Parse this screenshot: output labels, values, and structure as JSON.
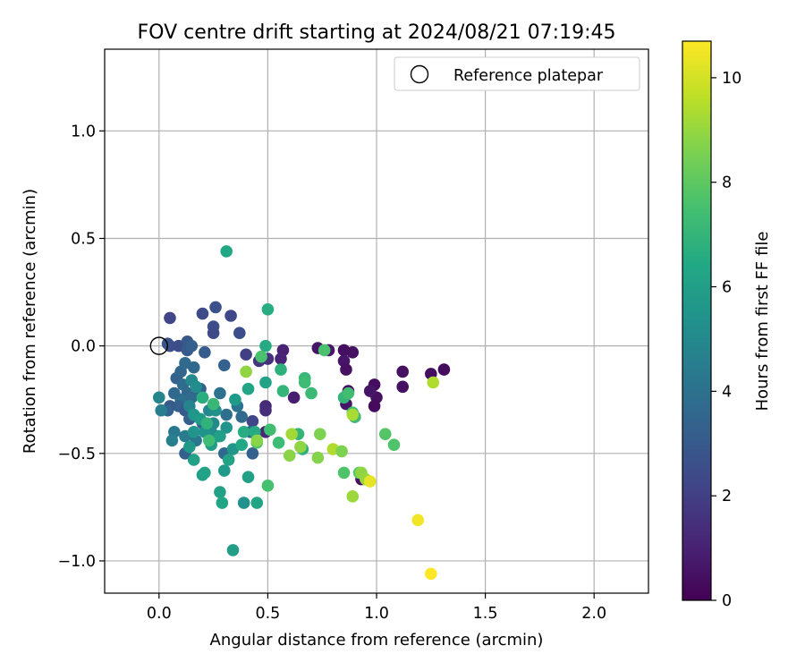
{
  "chart_data": {
    "type": "scatter",
    "title": "FOV centre drift starting at 2024/08/21 07:19:45",
    "xlabel": "Angular distance from reference (arcmin)",
    "ylabel": "Rotation from reference (arcmin)",
    "xlim": [
      -0.25,
      2.25
    ],
    "ylim": [
      -1.15,
      1.38
    ],
    "xticks": [
      0.0,
      0.5,
      1.0,
      1.5,
      2.0
    ],
    "xtick_labels": [
      "0.0",
      "0.5",
      "1.0",
      "1.5",
      "2.0"
    ],
    "yticks": [
      -1.0,
      -0.5,
      0.0,
      0.5,
      1.0
    ],
    "ytick_labels": [
      "−1.0",
      "−0.5",
      "0.0",
      "0.5",
      "1.0"
    ],
    "grid": true,
    "legend": {
      "position": "top-right",
      "entries": [
        "Reference platepar"
      ]
    },
    "reference_point": [
      0.0,
      0.0
    ],
    "colorbar": {
      "label": "Hours from first FF file",
      "range": [
        0,
        10.7
      ],
      "ticks": [
        0,
        2,
        4,
        6,
        8,
        10
      ],
      "tick_labels": [
        "0",
        "2",
        "4",
        "6",
        "8",
        "10"
      ],
      "colormap": "viridis"
    },
    "points": [
      [
        1.31,
        -0.11,
        0.3
      ],
      [
        1.25,
        -0.13,
        0.4
      ],
      [
        1.12,
        -0.12,
        0.5
      ],
      [
        1.12,
        -0.19,
        0.5
      ],
      [
        0.99,
        -0.18,
        0.4
      ],
      [
        1.0,
        -0.24,
        0.5
      ],
      [
        0.99,
        -0.28,
        0.3
      ],
      [
        0.97,
        -0.21,
        0.6
      ],
      [
        0.89,
        -0.03,
        0.5
      ],
      [
        0.85,
        -0.02,
        0.4
      ],
      [
        0.85,
        -0.07,
        0.6
      ],
      [
        0.86,
        -0.11,
        0.5
      ],
      [
        0.87,
        -0.21,
        0.4
      ],
      [
        0.86,
        -0.27,
        0.6
      ],
      [
        0.9,
        -0.33,
        0.5
      ],
      [
        0.73,
        -0.01,
        0.6
      ],
      [
        0.93,
        -0.62,
        0.5
      ],
      [
        0.78,
        -0.02,
        0.7
      ],
      [
        0.57,
        -0.02,
        1.0
      ],
      [
        0.56,
        -0.06,
        1.1
      ],
      [
        0.62,
        -0.24,
        0.9
      ],
      [
        0.46,
        -0.07,
        1.6
      ],
      [
        0.5,
        -0.06,
        1.5
      ],
      [
        0.49,
        -0.4,
        1.2
      ],
      [
        0.49,
        -0.28,
        1.3
      ],
      [
        0.49,
        -0.3,
        1.4
      ],
      [
        0.4,
        -0.04,
        2.0
      ],
      [
        0.43,
        -0.35,
        2.2
      ],
      [
        0.37,
        0.06,
        2.5
      ],
      [
        0.33,
        0.14,
        2.3
      ],
      [
        0.26,
        0.18,
        2.6
      ],
      [
        0.25,
        0.09,
        2.5
      ],
      [
        0.25,
        0.06,
        2.4
      ],
      [
        0.2,
        0.15,
        2.4
      ],
      [
        0.05,
        0.13,
        2.2
      ],
      [
        0.04,
        0.01,
        2.8
      ],
      [
        0.05,
        0.0,
        2.6
      ],
      [
        0.09,
        0.0,
        2.5
      ],
      [
        0.13,
        0.02,
        2.9
      ],
      [
        0.13,
        -0.02,
        3.0
      ],
      [
        0.15,
        0.0,
        3.2
      ],
      [
        0.21,
        -0.03,
        3.1
      ],
      [
        0.3,
        -0.09,
        3.3
      ],
      [
        0.08,
        -0.15,
        3.3
      ],
      [
        0.1,
        -0.12,
        3.5
      ],
      [
        0.12,
        -0.08,
        3.7
      ],
      [
        0.16,
        -0.1,
        3.6
      ],
      [
        0.11,
        -0.18,
        3.8
      ],
      [
        0.13,
        -0.22,
        3.6
      ],
      [
        0.1,
        -0.25,
        3.9
      ],
      [
        0.15,
        -0.24,
        3.7
      ],
      [
        0.17,
        -0.2,
        3.5
      ],
      [
        0.19,
        -0.2,
        3.2
      ],
      [
        0.09,
        -0.28,
        3.4
      ],
      [
        0.05,
        -0.28,
        3.1
      ],
      [
        0.04,
        -0.3,
        3.3
      ],
      [
        0.07,
        -0.22,
        3.6
      ],
      [
        0.12,
        -0.3,
        3.0
      ],
      [
        0.14,
        -0.34,
        3.2
      ],
      [
        0.2,
        -0.36,
        3.3
      ],
      [
        0.22,
        -0.4,
        3.8
      ],
      [
        0.28,
        -0.22,
        4.0
      ],
      [
        0.31,
        -0.32,
        3.9
      ],
      [
        0.36,
        -0.28,
        4.1
      ],
      [
        0.38,
        -0.33,
        3.7
      ],
      [
        0.42,
        -0.4,
        3.5
      ],
      [
        0.43,
        -0.5,
        3.3
      ],
      [
        0.3,
        -0.5,
        3.6
      ],
      [
        0.12,
        -0.5,
        3.2
      ],
      [
        0.17,
        -0.44,
        4.2
      ],
      [
        0.12,
        -0.42,
        4.4
      ],
      [
        0.07,
        -0.4,
        4.3
      ],
      [
        0.06,
        -0.44,
        4.6
      ],
      [
        0.01,
        -0.3,
        4.5
      ],
      [
        0.0,
        -0.24,
        4.8
      ],
      [
        0.15,
        -0.16,
        5.0
      ],
      [
        0.17,
        -0.19,
        5.2
      ],
      [
        0.14,
        -0.28,
        4.8
      ],
      [
        0.2,
        -0.24,
        4.7
      ],
      [
        0.23,
        -0.3,
        4.9
      ],
      [
        0.25,
        -0.36,
        5.0
      ],
      [
        0.27,
        -0.42,
        5.1
      ],
      [
        0.26,
        -0.3,
        5.3
      ],
      [
        0.31,
        -0.38,
        5.5
      ],
      [
        0.24,
        -0.4,
        5.2
      ],
      [
        0.16,
        -0.32,
        5.6
      ],
      [
        0.19,
        -0.34,
        5.8
      ],
      [
        0.16,
        -0.4,
        5.5
      ],
      [
        0.14,
        -0.47,
        5.7
      ],
      [
        0.21,
        -0.4,
        5.4
      ],
      [
        0.16,
        -0.53,
        6.1
      ],
      [
        0.2,
        -0.6,
        6.0
      ],
      [
        0.21,
        -0.59,
        6.2
      ],
      [
        0.24,
        -0.46,
        5.9
      ],
      [
        0.28,
        -0.42,
        6.0
      ],
      [
        0.34,
        -0.48,
        5.6
      ],
      [
        0.35,
        -0.25,
        5.8
      ],
      [
        0.3,
        -0.58,
        5.8
      ],
      [
        0.32,
        -0.53,
        6.2
      ],
      [
        0.28,
        -0.68,
        6.1
      ],
      [
        0.29,
        -0.73,
        6.3
      ],
      [
        0.34,
        -0.95,
        5.9
      ],
      [
        0.39,
        -0.73,
        5.4
      ],
      [
        0.41,
        -0.61,
        6.1
      ],
      [
        0.38,
        -0.46,
        6.4
      ],
      [
        0.39,
        -0.4,
        6.6
      ],
      [
        0.44,
        -0.4,
        6.5
      ],
      [
        0.45,
        -0.73,
        6.3
      ],
      [
        0.31,
        0.44,
        6.4
      ],
      [
        0.5,
        0.17,
        6.6
      ],
      [
        0.49,
        0.0,
        6.5
      ],
      [
        0.49,
        -0.17,
        6.2
      ],
      [
        0.41,
        -0.2,
        6.3
      ],
      [
        0.56,
        -0.11,
        6.8
      ],
      [
        0.57,
        -0.21,
        7.0
      ],
      [
        0.67,
        -0.15,
        7.1
      ],
      [
        0.67,
        -0.17,
        7.3
      ],
      [
        0.7,
        -0.22,
        7.2
      ],
      [
        0.85,
        -0.24,
        7.0
      ],
      [
        0.87,
        -0.22,
        7.4
      ],
      [
        0.89,
        -0.31,
        7.5
      ],
      [
        0.9,
        -0.33,
        7.3
      ],
      [
        0.66,
        -0.48,
        6.8
      ],
      [
        0.64,
        -0.41,
        7.0
      ],
      [
        0.55,
        -0.45,
        7.3
      ],
      [
        0.51,
        -0.39,
        7.4
      ],
      [
        0.47,
        -0.05,
        7.6
      ],
      [
        0.76,
        -0.02,
        7.6
      ],
      [
        0.2,
        -0.24,
        6.7
      ],
      [
        0.22,
        -0.36,
        6.9
      ],
      [
        0.25,
        -0.27,
        7.1
      ],
      [
        0.23,
        -0.44,
        7.3
      ],
      [
        0.45,
        -0.45,
        7.8
      ],
      [
        0.5,
        -0.65,
        7.5
      ],
      [
        0.85,
        -0.59,
        7.7
      ],
      [
        0.92,
        -0.59,
        7.9
      ],
      [
        1.04,
        -0.41,
        7.8
      ],
      [
        1.08,
        -0.46,
        7.7
      ],
      [
        0.4,
        -0.12,
        8.9
      ],
      [
        0.45,
        -0.44,
        8.8
      ],
      [
        0.61,
        -0.41,
        9.2
      ],
      [
        0.6,
        -0.51,
        8.8
      ],
      [
        0.65,
        -0.47,
        8.9
      ],
      [
        0.74,
        -0.41,
        8.6
      ],
      [
        0.73,
        -0.52,
        8.7
      ],
      [
        0.8,
        -0.48,
        9.4
      ],
      [
        0.84,
        -0.49,
        8.6
      ],
      [
        0.89,
        -0.7,
        9.1
      ],
      [
        0.89,
        -0.32,
        9.3
      ],
      [
        0.93,
        -0.59,
        8.9
      ],
      [
        0.95,
        -0.62,
        9.0
      ],
      [
        1.26,
        -0.17,
        9.4
      ],
      [
        0.97,
        -0.63,
        10.3
      ],
      [
        1.19,
        -0.81,
        10.5
      ],
      [
        1.25,
        -1.06,
        10.7
      ]
    ]
  }
}
